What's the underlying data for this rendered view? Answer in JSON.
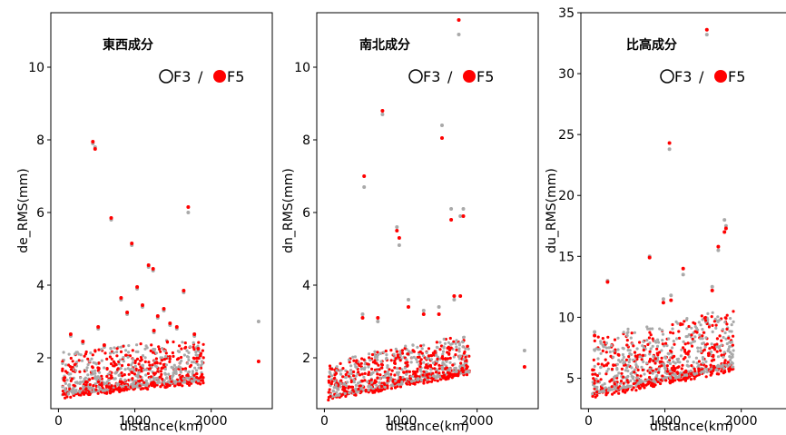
{
  "chart_data": [
    {
      "type": "scatter",
      "title": "東西成分",
      "xlabel": "distance(km)",
      "ylabel": "de_RMS(mm)",
      "xlim": [
        -100,
        2800
      ],
      "ylim": [
        0.6,
        11.5
      ],
      "xticks": [
        0,
        1000,
        2000
      ],
      "yticks": [
        2,
        4,
        6,
        8,
        10
      ],
      "legend": {
        "f3_label": "F3",
        "separator": "/",
        "f5_label": "F5",
        "position": "top-right"
      },
      "colors": {
        "F3": "#a9a9a9",
        "F5": "#ff0000"
      },
      "series": [
        {
          "name": "F3",
          "points": [
            [
              450,
              7.9
            ],
            [
              480,
              7.8
            ],
            [
              690,
              5.8
            ],
            [
              960,
              5.1
            ],
            [
              1180,
              4.5
            ],
            [
              1240,
              4.4
            ],
            [
              1700,
              6.0
            ],
            [
              2620,
              3.0
            ],
            [
              160,
              2.6
            ],
            [
              320,
              2.4
            ],
            [
              520,
              2.8
            ],
            [
              820,
              3.6
            ],
            [
              900,
              3.2
            ],
            [
              1030,
              3.9
            ],
            [
              1100,
              3.4
            ],
            [
              1300,
              3.1
            ],
            [
              1380,
              3.3
            ],
            [
              1460,
              2.9
            ],
            [
              1550,
              2.8
            ],
            [
              1640,
              3.8
            ],
            [
              1780,
              2.6
            ],
            [
              1830,
              2.2
            ],
            [
              600,
              2.3
            ],
            [
              1250,
              2.7
            ]
          ]
        },
        {
          "name": "F5",
          "points": [
            [
              450,
              7.95
            ],
            [
              480,
              7.75
            ],
            [
              690,
              5.85
            ],
            [
              960,
              5.15
            ],
            [
              1180,
              4.55
            ],
            [
              1240,
              4.45
            ],
            [
              1700,
              6.15
            ],
            [
              2620,
              1.9
            ],
            [
              160,
              2.65
            ],
            [
              320,
              2.45
            ],
            [
              520,
              2.85
            ],
            [
              820,
              3.65
            ],
            [
              900,
              3.25
            ],
            [
              1030,
              3.95
            ],
            [
              1100,
              3.45
            ],
            [
              1300,
              3.15
            ],
            [
              1380,
              3.35
            ],
            [
              1460,
              2.95
            ],
            [
              1550,
              2.85
            ],
            [
              1640,
              3.85
            ],
            [
              1780,
              2.65
            ],
            [
              1830,
              2.25
            ],
            [
              600,
              2.35
            ],
            [
              1250,
              2.75
            ]
          ]
        }
      ],
      "cloud": {
        "x_range": [
          50,
          1900
        ],
        "center_start": 1.2,
        "center_end": 1.6,
        "spread": 0.4
      }
    },
    {
      "type": "scatter",
      "title": "南北成分",
      "xlabel": "distance(km)",
      "ylabel": "dn_RMS(mm)",
      "xlim": [
        -100,
        2800
      ],
      "ylim": [
        0.6,
        11.5
      ],
      "xticks": [
        0,
        1000,
        2000
      ],
      "yticks": [
        2,
        4,
        6,
        8,
        10
      ],
      "legend": {
        "f3_label": "F3",
        "separator": "/",
        "f5_label": "F5",
        "position": "top-right"
      },
      "colors": {
        "F3": "#a9a9a9",
        "F5": "#ff0000"
      },
      "series": [
        {
          "name": "F3",
          "points": [
            [
              520,
              6.7
            ],
            [
              760,
              8.7
            ],
            [
              950,
              5.6
            ],
            [
              980,
              5.1
            ],
            [
              1540,
              8.4
            ],
            [
              1660,
              6.1
            ],
            [
              1760,
              10.9
            ],
            [
              1820,
              6.1
            ],
            [
              1780,
              5.9
            ],
            [
              2620,
              2.2
            ],
            [
              500,
              3.2
            ],
            [
              700,
              3.0
            ],
            [
              1100,
              3.6
            ],
            [
              1300,
              3.3
            ],
            [
              1500,
              3.4
            ],
            [
              1700,
              3.6
            ]
          ]
        },
        {
          "name": "F5",
          "points": [
            [
              520,
              7.0
            ],
            [
              760,
              8.8
            ],
            [
              950,
              5.5
            ],
            [
              980,
              5.3
            ],
            [
              1540,
              8.05
            ],
            [
              1660,
              5.8
            ],
            [
              1760,
              11.3
            ],
            [
              1820,
              5.9
            ],
            [
              1780,
              3.7
            ],
            [
              2620,
              1.75
            ],
            [
              500,
              3.1
            ],
            [
              700,
              3.1
            ],
            [
              1100,
              3.4
            ],
            [
              1300,
              3.2
            ],
            [
              1500,
              3.2
            ],
            [
              1700,
              3.7
            ]
          ]
        }
      ],
      "cloud": {
        "x_range": [
          50,
          1900
        ],
        "center_start": 1.1,
        "center_end": 1.8,
        "spread": 0.35
      }
    },
    {
      "type": "scatter",
      "title": "比高成分",
      "xlabel": "distance(km)",
      "ylabel": "du_RMS(mm)",
      "xlim": [
        -100,
        2800
      ],
      "ylim": [
        2.5,
        35
      ],
      "xticks": [
        0,
        1000,
        2000
      ],
      "yticks": [
        5,
        10,
        15,
        20,
        25,
        30,
        35
      ],
      "legend": {
        "f3_label": "F3",
        "separator": "/",
        "f5_label": "F5",
        "position": "top-right"
      },
      "colors": {
        "F3": "#a9a9a9",
        "F5": "#ff0000"
      },
      "series": [
        {
          "name": "F3",
          "points": [
            [
              1550,
              33.2
            ],
            [
              1060,
              23.8
            ],
            [
              1780,
              18.0
            ],
            [
              800,
              15.0
            ],
            [
              250,
              13.0
            ],
            [
              1800,
              17.5
            ],
            [
              1700,
              15.5
            ],
            [
              1240,
              13.5
            ],
            [
              80,
              8.8
            ],
            [
              980,
              11.5
            ],
            [
              1620,
              12.5
            ],
            [
              1080,
              11.8
            ]
          ]
        },
        {
          "name": "F5",
          "points": [
            [
              1550,
              33.6
            ],
            [
              1060,
              24.3
            ],
            [
              1780,
              17.0
            ],
            [
              800,
              14.9
            ],
            [
              250,
              12.9
            ],
            [
              1800,
              17.3
            ],
            [
              1700,
              15.8
            ],
            [
              1240,
              14.0
            ],
            [
              80,
              8.5
            ],
            [
              980,
              11.2
            ],
            [
              1620,
              12.2
            ],
            [
              1080,
              11.4
            ]
          ]
        }
      ],
      "cloud": {
        "x_range": [
          50,
          1900
        ],
        "center_start": 4.6,
        "center_end": 6.8,
        "spread": 1.6
      }
    }
  ]
}
